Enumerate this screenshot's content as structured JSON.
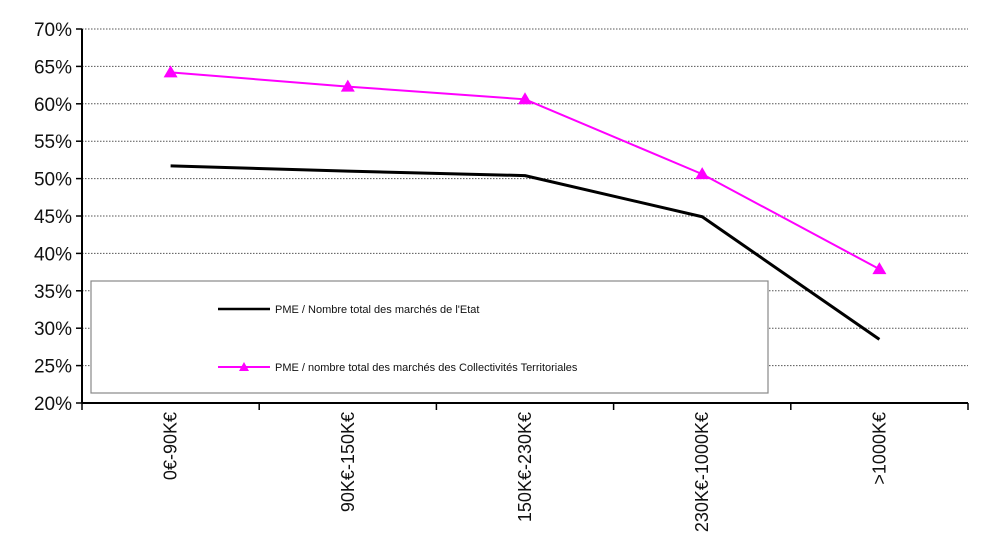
{
  "chart_data": {
    "type": "line",
    "categories": [
      "0€-90K€",
      "90K€-150K€",
      "150K€-230K€",
      "230K€-1000K€",
      ">1000K€"
    ],
    "series": [
      {
        "name": "PME /  Nombre total des marchés de l'Etat",
        "values": [
          51.7,
          51.0,
          50.4,
          44.9,
          28.5
        ],
        "color": "#000000",
        "marker": "none"
      },
      {
        "name": "PME / nombre total des marchés des Collectivités Territoriales",
        "values": [
          64.2,
          62.3,
          60.6,
          50.6,
          37.9
        ],
        "color": "#ff00ff",
        "marker": "triangle"
      }
    ],
    "y_ticks": [
      "20%",
      "25%",
      "30%",
      "35%",
      "40%",
      "45%",
      "50%",
      "55%",
      "60%",
      "65%",
      "70%"
    ],
    "ylim": [
      20,
      70
    ],
    "grid": true,
    "legend_position": "lower-left inside plot"
  }
}
